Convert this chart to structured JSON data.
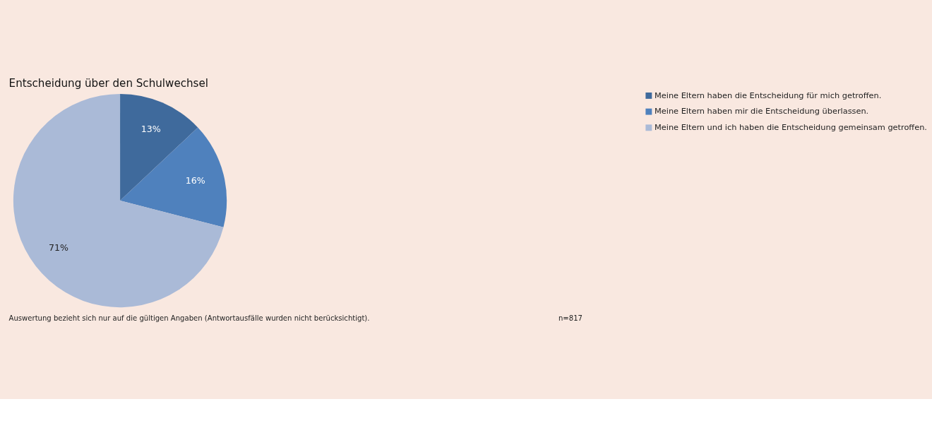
{
  "chart_data": {
    "type": "pie",
    "title": "Entscheidung über den Schulwechsel",
    "categories": [
      "Meine Eltern haben die Entscheidung für mich getroffen.",
      "Meine Eltern haben mir die Entscheidung überlassen.",
      "Meine Eltern und ich haben die Entscheidung gemeinsam getroffen."
    ],
    "values": [
      13,
      16,
      71
    ],
    "colors": [
      "#3f6a9c",
      "#4f81bd",
      "#aabad7"
    ],
    "value_labels": [
      "13%",
      "16%",
      "71%"
    ],
    "legend": "right",
    "annotations": [
      "Auswertung bezieht sich nur auf die gültigen Angaben (Antwortausfälle wurden nicht berücksichtigt).",
      "n=817"
    ]
  }
}
